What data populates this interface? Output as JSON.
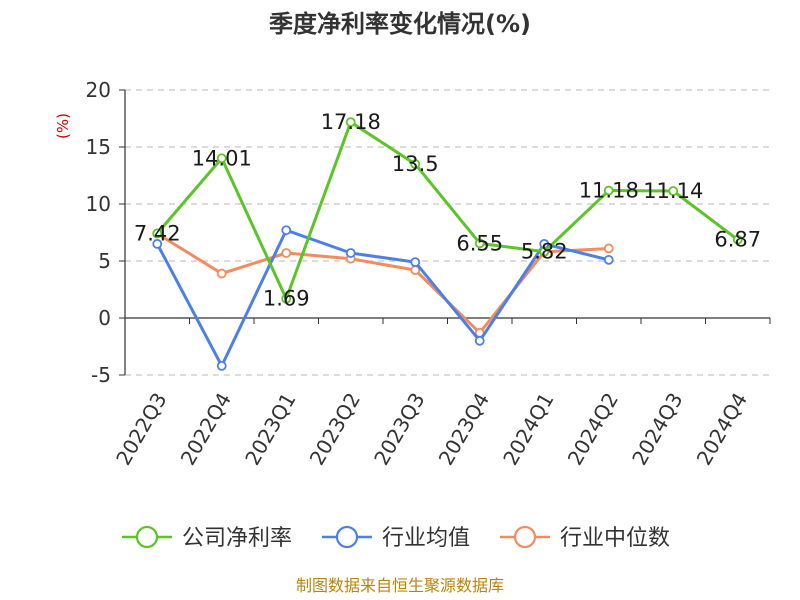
{
  "chart_data": {
    "type": "line",
    "title": "季度净利率变化情况(%)",
    "ylabel": "(%)",
    "xlabel": "",
    "ylim": [
      -5,
      20
    ],
    "yticks": [
      20,
      15,
      10,
      5,
      0,
      -5
    ],
    "grid": true,
    "legend_position": "bottom",
    "categories": [
      "2022Q3",
      "2022Q4",
      "2023Q1",
      "2023Q2",
      "2023Q3",
      "2023Q4",
      "2024Q1",
      "2024Q2",
      "2024Q3",
      "2024Q4"
    ],
    "series": [
      {
        "name": "公司净利率",
        "color": "#5bc426",
        "values": [
          7.42,
          14.01,
          1.69,
          17.18,
          13.5,
          6.55,
          5.82,
          11.18,
          11.14,
          6.87
        ],
        "labels": [
          "7.42",
          "14.01",
          "1.69",
          "17.18",
          "13.5",
          "6.55",
          "5.82",
          "11.18",
          "11.14",
          "6.87"
        ]
      },
      {
        "name": "行业均值",
        "color": "#4d80e6",
        "values": [
          6.5,
          -4.2,
          7.7,
          5.7,
          4.9,
          -2.0,
          6.5,
          5.1,
          null,
          null
        ]
      },
      {
        "name": "行业中位数",
        "color": "#f28c5e",
        "values": [
          7.4,
          3.9,
          5.7,
          5.2,
          4.2,
          -1.3,
          5.8,
          6.1,
          null,
          null
        ]
      }
    ]
  },
  "source_text": "制图数据来自恒生聚源数据库"
}
